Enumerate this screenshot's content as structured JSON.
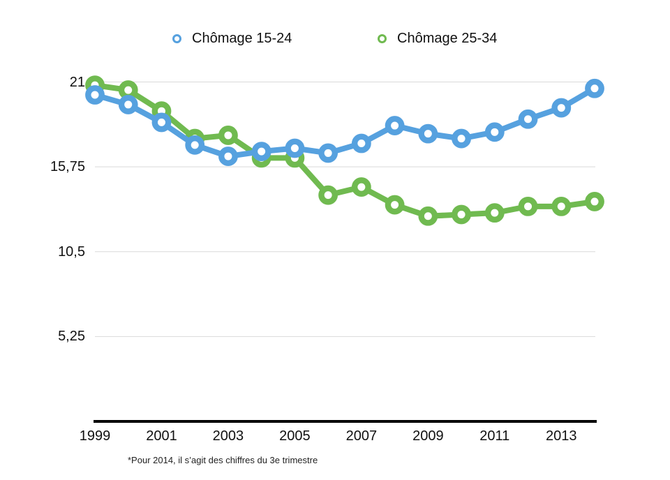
{
  "legend": {
    "items": [
      {
        "label": "Chômage 15-24",
        "color": "#56A1DF"
      },
      {
        "label": "Chômage 25-34",
        "color": "#70BA50"
      }
    ]
  },
  "chart_data": {
    "type": "line",
    "x": [
      1999,
      2000,
      2001,
      2002,
      2003,
      2004,
      2005,
      2006,
      2007,
      2008,
      2009,
      2010,
      2011,
      2012,
      2013,
      2014
    ],
    "x_tick_labels": [
      "1999",
      "2001",
      "2003",
      "2005",
      "2007",
      "2009",
      "2011",
      "2013"
    ],
    "series": [
      {
        "name": "Chômage 15-24",
        "color": "#56A1DF",
        "values": [
          20.2,
          19.6,
          18.5,
          17.1,
          16.4,
          16.7,
          16.9,
          16.6,
          17.2,
          18.3,
          17.8,
          17.5,
          17.9,
          18.7,
          19.4,
          20.6
        ]
      },
      {
        "name": "Chômage 25-34",
        "color": "#70BA50",
        "values": [
          20.8,
          20.5,
          19.2,
          17.5,
          17.7,
          16.3,
          16.3,
          14.0,
          14.5,
          13.4,
          12.7,
          12.8,
          12.9,
          13.3,
          13.3,
          13.6
        ]
      }
    ],
    "ylim": [
      0,
      21
    ],
    "y_ticks": [
      {
        "value": 21,
        "label": "21"
      },
      {
        "value": 15.75,
        "label": "15,75"
      },
      {
        "value": 10.5,
        "label": "10,5"
      },
      {
        "value": 5.25,
        "label": "5,25"
      }
    ],
    "grid": "horizontal",
    "legend_position": "top",
    "marker": "ring",
    "colors": {
      "gridline": "#D9D9D9",
      "axis": "#000000",
      "text": "#111111"
    }
  },
  "footnote": "*Pour 2014, il s’agit des chiffres du 3e trimestre"
}
